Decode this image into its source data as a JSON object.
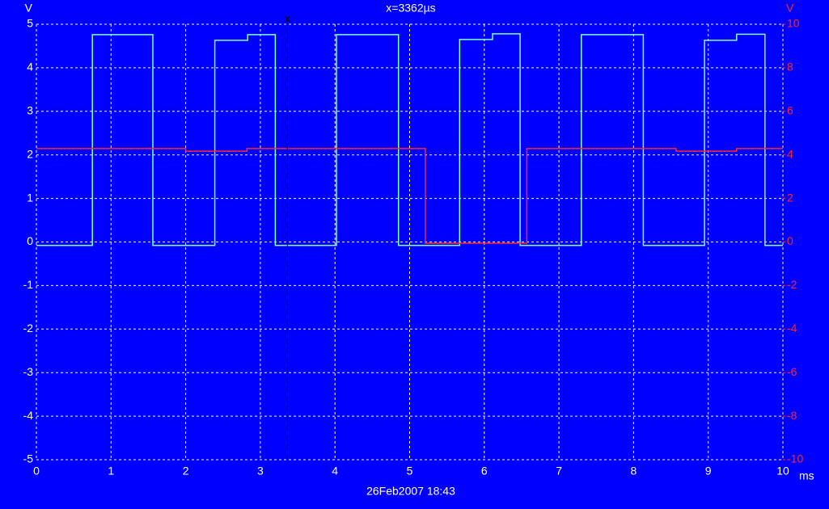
{
  "chart_data": {
    "type": "line",
    "title": "x=3362µs",
    "footer": "26Feb2007  18:43",
    "x_unit": "ms",
    "y_unit": "V",
    "y2_unit": "V",
    "xlim": [
      0,
      10
    ],
    "xticks": [
      0,
      1,
      2,
      3,
      4,
      5,
      6,
      7,
      8,
      9,
      10
    ],
    "ylim": [
      -5,
      5
    ],
    "yticks": [
      -5,
      -4,
      -3,
      -2,
      -1,
      0,
      1,
      2,
      3,
      4,
      5
    ],
    "y2lim": [
      -10,
      10
    ],
    "y2ticks": [
      -10,
      -8,
      -6,
      -4,
      -2,
      0,
      2,
      4,
      6,
      8,
      10
    ],
    "grid": true,
    "cursor": {
      "x": 3.362,
      "label": "x"
    },
    "series": [
      {
        "color": "#80ffd8",
        "x": [
          0,
          0.75,
          0.75,
          1.56,
          1.56,
          2.39,
          2.39,
          2.83,
          2.83,
          3.2,
          3.2,
          4.02,
          4.02,
          4.85,
          4.85,
          5.67,
          5.67,
          6.11,
          6.11,
          6.48,
          6.48,
          7.3,
          7.3,
          8.13,
          8.13,
          8.95,
          8.95,
          9.38,
          9.38,
          9.76,
          9.76,
          10
        ],
        "values": [
          -0.08,
          -0.08,
          4.76,
          4.76,
          -0.08,
          -0.08,
          4.63,
          4.63,
          4.76,
          4.76,
          -0.08,
          -0.08,
          4.76,
          4.76,
          -0.08,
          -0.08,
          4.65,
          4.65,
          4.78,
          4.78,
          -0.08,
          -0.08,
          4.76,
          4.76,
          -0.08,
          -0.08,
          4.63,
          4.63,
          4.77,
          4.77,
          -0.08,
          -0.08
        ]
      },
      {
        "color": "#ff2828",
        "axis": "y2",
        "x": [
          0,
          2.0,
          2.0,
          2.82,
          2.82,
          5.21,
          5.21,
          6.57,
          6.57,
          8.57,
          8.57,
          9.38,
          9.38,
          10
        ],
        "values": [
          4.29,
          4.29,
          4.17,
          4.17,
          4.29,
          4.29,
          -0.06,
          -0.06,
          4.29,
          4.29,
          4.17,
          4.17,
          4.29,
          4.29
        ]
      }
    ]
  }
}
